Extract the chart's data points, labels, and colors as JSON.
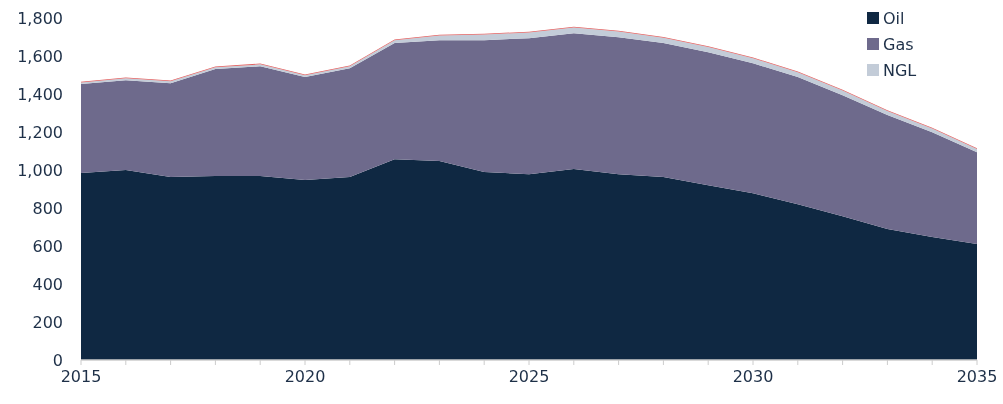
{
  "chart_data": {
    "type": "area",
    "stacked": true,
    "x": [
      2015,
      2016,
      2017,
      2018,
      2019,
      2020,
      2021,
      2022,
      2023,
      2024,
      2025,
      2026,
      2027,
      2028,
      2029,
      2030,
      2031,
      2032,
      2033,
      2034,
      2035
    ],
    "series": [
      {
        "name": "Oil",
        "color": "#0f2842",
        "values": [
          984,
          1000,
          963,
          968,
          968,
          947,
          963,
          1057,
          1047,
          989,
          978,
          1005,
          978,
          963,
          920,
          878,
          820,
          757,
          689,
          647,
          610
        ]
      },
      {
        "name": "Gas",
        "color": "#6e6a8c",
        "values": [
          468,
          473,
          494,
          563,
          578,
          542,
          573,
          611,
          636,
          694,
          716,
          715,
          721,
          705,
          700,
          684,
          669,
          637,
          600,
          552,
          484
        ]
      },
      {
        "name": "NGL",
        "color": "#c3ccd8",
        "values": [
          8,
          10,
          10,
          10,
          10,
          10,
          10,
          15,
          25,
          30,
          30,
          30,
          30,
          28,
          27,
          26,
          25,
          24,
          22,
          20,
          16
        ]
      },
      {
        "color": "#e06060",
        "values": [
          4,
          4,
          4,
          4,
          4,
          4,
          4,
          4,
          4,
          4,
          4,
          4,
          4,
          4,
          4,
          4,
          4,
          4,
          4,
          4,
          4
        ]
      }
    ],
    "xlim": [
      2015,
      2035
    ],
    "xticks": [
      2015,
      {
        "value": 2016,
        "label": null
      },
      {
        "value": 2017,
        "label": null
      },
      {
        "value": 2018,
        "label": null
      },
      {
        "value": 2019,
        "label": null
      },
      2020,
      {
        "value": 2021,
        "label": null
      },
      {
        "value": 2022,
        "label": null
      },
      {
        "value": 2023,
        "label": null
      },
      {
        "value": 2024,
        "label": null
      },
      2025,
      {
        "value": 2026,
        "label": null
      },
      {
        "value": 2027,
        "label": null
      },
      {
        "value": 2028,
        "label": null
      },
      {
        "value": 2029,
        "label": null
      },
      2030,
      {
        "value": 2031,
        "label": null
      },
      {
        "value": 2032,
        "label": null
      },
      {
        "value": 2033,
        "label": null
      },
      {
        "value": 2034,
        "label": null
      },
      2035
    ],
    "ylim": [
      0,
      1800
    ],
    "yticks": [
      0,
      200,
      400,
      600,
      800,
      {
        "value": 1000,
        "label": "1,000"
      },
      {
        "value": 1200,
        "label": "1,200"
      },
      {
        "value": 1400,
        "label": "1,400"
      },
      {
        "value": 1600,
        "label": "1,600"
      },
      {
        "value": 1800,
        "label": "1,800"
      }
    ],
    "legend": "top right",
    "grid": false
  }
}
